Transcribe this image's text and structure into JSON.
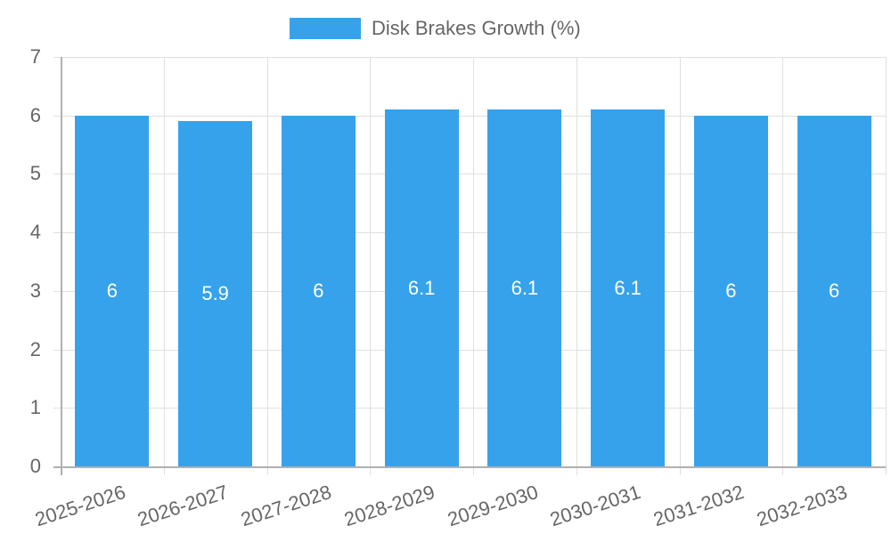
{
  "chart_data": {
    "type": "bar",
    "title": "",
    "legend": [
      {
        "label": "Disk Brakes Growth (%)",
        "color": "#36a2eb"
      }
    ],
    "legend_position": "top",
    "categories": [
      "2025-2026",
      "2026-2027",
      "2027-2028",
      "2028-2029",
      "2029-2030",
      "2030-2031",
      "2031-2032",
      "2032-2033"
    ],
    "series": [
      {
        "name": "Disk Brakes Growth (%)",
        "values": [
          6,
          5.9,
          6,
          6.1,
          6.1,
          6.1,
          6,
          6
        ],
        "color": "#36a2eb"
      }
    ],
    "data_labels": [
      "6",
      "5.9",
      "6",
      "6.1",
      "6.1",
      "6.1",
      "6",
      "6"
    ],
    "xlabel": "",
    "ylabel": "",
    "ylim": [
      0,
      7
    ],
    "yticks": [
      "0",
      "1",
      "2",
      "3",
      "4",
      "5",
      "6",
      "7"
    ],
    "grid": true
  },
  "legend": {
    "label": "Disk Brakes Growth (%)"
  }
}
